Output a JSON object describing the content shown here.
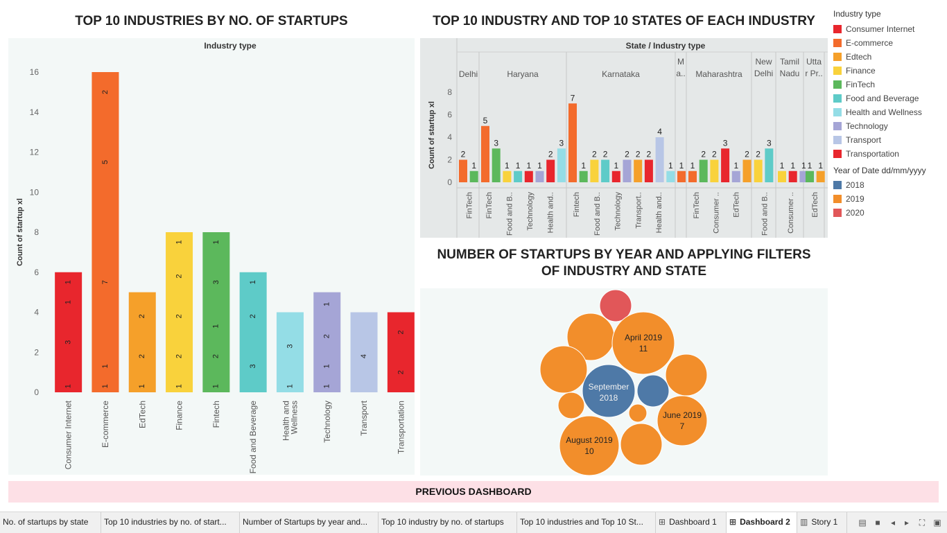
{
  "titles": {
    "chart1": "TOP 10 INDUSTRIES BY NO. OF STARTUPS",
    "chart2": "TOP 10 INDUSTRY AND TOP 10 STATES OF EACH INDUSTRY",
    "chart3_line1": "NUMBER OF STARTUPS BY YEAR AND APPLYING FILTERS",
    "chart3_line2": "OF INDUSTRY AND STATE"
  },
  "colors": {
    "Consumer Internet": "#e8262d",
    "E-commerce": "#f36b2c",
    "Edtech": "#f5a02a",
    "Finance": "#f9d23c",
    "FinTech": "#5cb85c",
    "Food and Beverage": "#5ecbc8",
    "Health and Wellness": "#94dde6",
    "Technology": "#a5a5d6",
    "Transport": "#b8c6e6",
    "Transportation": "#e8262d",
    "y2018": "#4e79a7",
    "y2019": "#f28e2b",
    "y2020": "#e15759",
    "panel_bg": "#f3f8f7",
    "panel_bg2": "#e5e8e8"
  },
  "chart_data": [
    {
      "type": "bar",
      "title": "TOP 10 INDUSTRIES BY NO. OF STARTUPS",
      "header": "Industry type",
      "ylabel": "Count of startup xl",
      "ylim": [
        0,
        16
      ],
      "yticks": [
        "0",
        "2",
        "4",
        "6",
        "8",
        "10",
        "12",
        "14",
        "16"
      ],
      "categories": [
        "Consumer Internet",
        "E-commerce",
        "EdTech",
        "Finance",
        "Fintech",
        "Food and Beverage",
        "Health and Wellness",
        "Technology",
        "Transport",
        "Transportation"
      ],
      "values": [
        6,
        16,
        5,
        8,
        8,
        6,
        4,
        5,
        4,
        4
      ],
      "colors": [
        "#e8262d",
        "#f36b2c",
        "#f5a02a",
        "#f9d23c",
        "#5cb85c",
        "#5ecbc8",
        "#94dde6",
        "#a5a5d6",
        "#b8c6e6",
        "#e8262d"
      ],
      "segment_labels": [
        [
          {
            "v": 0.3,
            "t": "1"
          },
          {
            "v": 2.5,
            "t": "3"
          },
          {
            "v": 4.5,
            "t": "1"
          },
          {
            "v": 5.5,
            "t": "1"
          }
        ],
        [
          {
            "v": 0.3,
            "t": "1"
          },
          {
            "v": 1.3,
            "t": "1"
          },
          {
            "v": 5.5,
            "t": "7"
          },
          {
            "v": 11.5,
            "t": "5"
          },
          {
            "v": 15,
            "t": "2"
          }
        ],
        [
          {
            "v": 0.3,
            "t": "1"
          },
          {
            "v": 1.8,
            "t": "2"
          },
          {
            "v": 3.8,
            "t": "2"
          }
        ],
        [
          {
            "v": 0.3,
            "t": "1"
          },
          {
            "v": 1.8,
            "t": "2"
          },
          {
            "v": 3.8,
            "t": "2"
          },
          {
            "v": 5.8,
            "t": "2"
          },
          {
            "v": 7.5,
            "t": "1"
          }
        ],
        [
          {
            "v": 0.3,
            "t": "1"
          },
          {
            "v": 1.8,
            "t": "2"
          },
          {
            "v": 3.3,
            "t": "1"
          },
          {
            "v": 5.5,
            "t": "3"
          },
          {
            "v": 7.5,
            "t": "1"
          }
        ],
        [
          {
            "v": 1.3,
            "t": "3"
          },
          {
            "v": 3.8,
            "t": "2"
          },
          {
            "v": 5.5,
            "t": "1"
          }
        ],
        [
          {
            "v": 0.3,
            "t": "1"
          },
          {
            "v": 2.3,
            "t": "3"
          }
        ],
        [
          {
            "v": 0.3,
            "t": "1"
          },
          {
            "v": 1.3,
            "t": "1"
          },
          {
            "v": 2.8,
            "t": "2"
          },
          {
            "v": 4.4,
            "t": "1"
          }
        ],
        [
          {
            "v": 1.8,
            "t": "4"
          }
        ],
        [
          {
            "v": 1,
            "t": "2"
          },
          {
            "v": 3,
            "t": "2"
          }
        ]
      ]
    },
    {
      "type": "bar",
      "title": "TOP 10 INDUSTRY AND TOP 10 STATES OF EACH INDUSTRY",
      "header": "State / Industry type",
      "ylabel": "Count of startup xl",
      "ylim": [
        0,
        8
      ],
      "yticks": [
        "0",
        "2",
        "4",
        "6",
        "8"
      ],
      "states": [
        {
          "name": "Delhi",
          "bars": [
            {
              "v": 2,
              "c": "E-commerce"
            },
            {
              "v": 1,
              "c": "FinTech"
            }
          ],
          "xlabels": [
            "FinTech"
          ]
        },
        {
          "name": "Haryana",
          "bars": [
            {
              "v": 5,
              "c": "E-commerce"
            },
            {
              "v": 3,
              "c": "FinTech"
            },
            {
              "v": 1,
              "c": "Finance"
            },
            {
              "v": 1,
              "c": "Food and Beverage"
            },
            {
              "v": 1,
              "c": "Consumer Internet"
            },
            {
              "v": 1,
              "c": "Technology"
            },
            {
              "v": 2,
              "c": "Consumer Internet"
            },
            {
              "v": 3,
              "c": "Health and Wellness"
            }
          ],
          "xlabels": [
            "FinTech",
            "Food and B..",
            "Technology",
            "Health and.."
          ]
        },
        {
          "name": "Karnataka",
          "bars": [
            {
              "v": 7,
              "c": "E-commerce"
            },
            {
              "v": 1,
              "c": "FinTech"
            },
            {
              "v": 2,
              "c": "Finance"
            },
            {
              "v": 2,
              "c": "Food and Beverage"
            },
            {
              "v": 1,
              "c": "Consumer Internet"
            },
            {
              "v": 2,
              "c": "Technology"
            },
            {
              "v": 2,
              "c": "Edtech"
            },
            {
              "v": 2,
              "c": "Consumer Internet"
            },
            {
              "v": 4,
              "c": "Transport"
            },
            {
              "v": 1,
              "c": "Health and Wellness"
            }
          ],
          "xlabels": [
            "Fintech",
            "Food and B..",
            "Technology",
            "Transport..",
            "Health and.."
          ]
        },
        {
          "name": "M\na..",
          "bars": [
            {
              "v": 1,
              "c": "E-commerce"
            }
          ],
          "xlabels": []
        },
        {
          "name": "Maharashtra",
          "bars": [
            {
              "v": 1,
              "c": "E-commerce"
            },
            {
              "v": 2,
              "c": "FinTech"
            },
            {
              "v": 2,
              "c": "Finance"
            },
            {
              "v": 3,
              "c": "Consumer Internet"
            },
            {
              "v": 1,
              "c": "Technology"
            },
            {
              "v": 2,
              "c": "Edtech"
            }
          ],
          "xlabels": [
            "FinTech",
            "Consumer ..",
            "EdTech"
          ]
        },
        {
          "name": "New\nDelhi",
          "bars": [
            {
              "v": 2,
              "c": "Finance"
            },
            {
              "v": 3,
              "c": "Food and Beverage"
            }
          ],
          "xlabels": [
            "Food and B.."
          ]
        },
        {
          "name": "Tamil\nNadu",
          "bars": [
            {
              "v": 1,
              "c": "Finance"
            },
            {
              "v": 1,
              "c": "Consumer Internet"
            },
            {
              "v": 1,
              "c": "Technology"
            }
          ],
          "xlabels": [
            "Consumer .."
          ]
        },
        {
          "name": "Utta\nr Pr..",
          "bars": [
            {
              "v": 1,
              "c": "FinTech"
            },
            {
              "v": 1,
              "c": "Edtech"
            }
          ],
          "xlabels": [
            "EdTech"
          ]
        }
      ]
    },
    {
      "type": "bubble",
      "title": "NUMBER OF STARTUPS BY YEAR AND APPLYING FILTERS OF INDUSTRY AND STATE",
      "bubbles": [
        {
          "label": "",
          "value": 2,
          "year": "2020"
        },
        {
          "label": "",
          "value": 4,
          "year": "2019"
        },
        {
          "label": "April 2019",
          "value": 11,
          "year": "2019"
        },
        {
          "label": "",
          "value": 4,
          "year": "2019"
        },
        {
          "label": "September 2018",
          "value": 7,
          "year": "2018"
        },
        {
          "label": "",
          "value": 2,
          "year": "2018"
        },
        {
          "label": "",
          "value": 4,
          "year": "2019"
        },
        {
          "label": "",
          "value": 1,
          "year": "2019"
        },
        {
          "label": "",
          "value": 1,
          "year": "2019"
        },
        {
          "label": "June 2019",
          "value": 7,
          "year": "2019"
        },
        {
          "label": "August 2019",
          "value": 10,
          "year": "2019"
        },
        {
          "label": "",
          "value": 4,
          "year": "2019"
        }
      ]
    }
  ],
  "legend": {
    "industry_title": "Industry type",
    "industry_items": [
      "Consumer Internet",
      "E-commerce",
      "Edtech",
      "Finance",
      "FinTech",
      "Food and Beverage",
      "Health and Wellness",
      "Technology",
      "Transport",
      "Transportation"
    ],
    "year_title": "Year of Date dd/mm/yyyy",
    "year_items": [
      "2018",
      "2019",
      "2020"
    ]
  },
  "prev_button": "PREVIOUS DASHBOARD",
  "tabs": [
    {
      "label": "No. of startups by state",
      "icon": ""
    },
    {
      "label": "Top 10 industries by no. of start...",
      "icon": ""
    },
    {
      "label": "Number of Startups by year and...",
      "icon": ""
    },
    {
      "label": "Top 10 industry by no. of startups",
      "icon": ""
    },
    {
      "label": "Top 10 industries and Top 10 St...",
      "icon": ""
    },
    {
      "label": "Dashboard 1",
      "icon": "grid-icon"
    },
    {
      "label": "Dashboard 2",
      "icon": "grid-icon"
    },
    {
      "label": "Story 1",
      "icon": "book-icon"
    }
  ]
}
